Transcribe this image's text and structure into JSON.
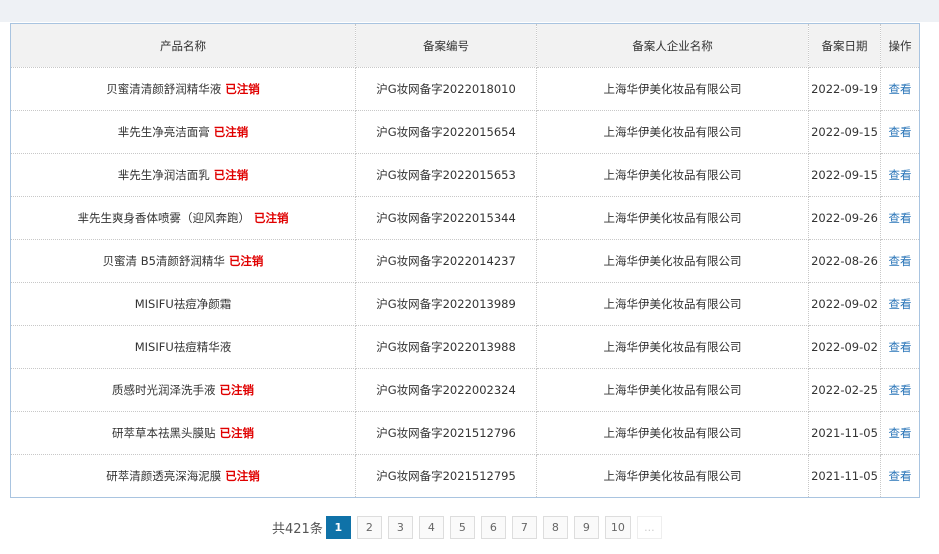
{
  "table": {
    "headers": [
      "产品名称",
      "备案编号",
      "备案人企业名称",
      "备案日期",
      "操作"
    ],
    "rows": [
      {
        "name": "贝蜜清清颜舒润精华液",
        "status": "已注销",
        "code": "沪G妆网备字2022018010",
        "company": "上海华伊美化妆品有限公司",
        "date": "2022-09-19",
        "action": "查看"
      },
      {
        "name": "芈先生净亮洁面膏",
        "status": "已注销",
        "code": "沪G妆网备字2022015654",
        "company": "上海华伊美化妆品有限公司",
        "date": "2022-09-15",
        "action": "查看"
      },
      {
        "name": "芈先生净润洁面乳",
        "status": "已注销",
        "code": "沪G妆网备字2022015653",
        "company": "上海华伊美化妆品有限公司",
        "date": "2022-09-15",
        "action": "查看"
      },
      {
        "name": "芈先生爽身香体喷雾（迎风奔跑）",
        "status": "已注销",
        "code": "沪G妆网备字2022015344",
        "company": "上海华伊美化妆品有限公司",
        "date": "2022-09-26",
        "action": "查看"
      },
      {
        "name": "贝蜜清 B5清颜舒润精华",
        "status": "已注销",
        "code": "沪G妆网备字2022014237",
        "company": "上海华伊美化妆品有限公司",
        "date": "2022-08-26",
        "action": "查看"
      },
      {
        "name": "MISIFU祛痘净颜霜",
        "status": "",
        "code": "沪G妆网备字2022013989",
        "company": "上海华伊美化妆品有限公司",
        "date": "2022-09-02",
        "action": "查看"
      },
      {
        "name": "MISIFU祛痘精华液",
        "status": "",
        "code": "沪G妆网备字2022013988",
        "company": "上海华伊美化妆品有限公司",
        "date": "2022-09-02",
        "action": "查看"
      },
      {
        "name": "质感时光润泽洗手液",
        "status": "已注销",
        "code": "沪G妆网备字2022002324",
        "company": "上海华伊美化妆品有限公司",
        "date": "2022-02-25",
        "action": "查看"
      },
      {
        "name": "研萃草本祛黑头膜贴",
        "status": "已注销",
        "code": "沪G妆网备字2021512796",
        "company": "上海华伊美化妆品有限公司",
        "date": "2021-11-05",
        "action": "查看"
      },
      {
        "name": "研萃清颜透亮深海泥膜",
        "status": "已注销",
        "code": "沪G妆网备字2021512795",
        "company": "上海华伊美化妆品有限公司",
        "date": "2021-11-05",
        "action": "查看"
      }
    ]
  },
  "pagination": {
    "total_label": "共421条",
    "pages": [
      "1",
      "2",
      "3",
      "4",
      "5",
      "6",
      "7",
      "8",
      "9",
      "10"
    ],
    "current": "1",
    "more": "..."
  },
  "colors": {
    "status_cancelled": "#e00000",
    "link": "#2a75b8",
    "active_page": "#0f72a8"
  }
}
